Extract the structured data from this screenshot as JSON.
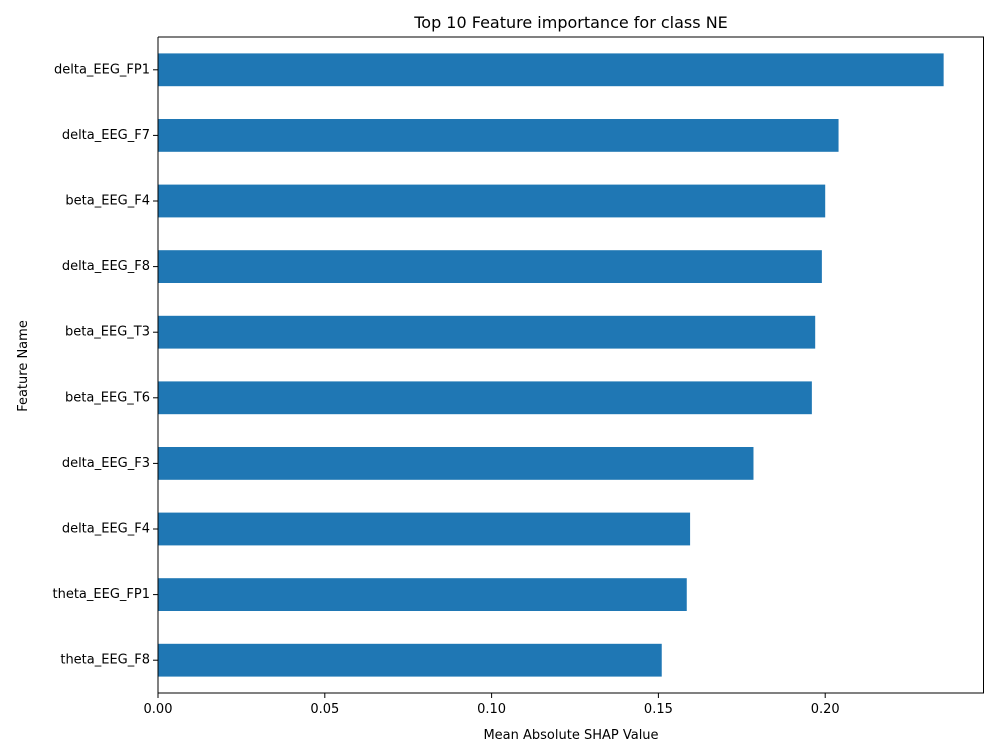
{
  "chart_data": {
    "type": "bar",
    "orientation": "horizontal",
    "title": "Top 10 Feature importance for class NE",
    "xlabel": "Mean Absolute SHAP Value",
    "ylabel": "Feature Name",
    "categories": [
      "delta_EEG_FP1",
      "delta_EEG_F7",
      "beta_EEG_F4",
      "delta_EEG_F8",
      "beta_EEG_T3",
      "beta_EEG_T6",
      "delta_EEG_F3",
      "delta_EEG_F4",
      "theta_EEG_FP1",
      "theta_EEG_F8"
    ],
    "values": [
      0.2355,
      0.204,
      0.2,
      0.199,
      0.197,
      0.196,
      0.1785,
      0.1595,
      0.1585,
      0.151
    ],
    "xlim": [
      0,
      0.2476
    ],
    "xticks": [
      "0.00",
      "0.05",
      "0.10",
      "0.15",
      "0.20"
    ],
    "grid": false,
    "legend": "none",
    "bar_color": "#1f77b4"
  }
}
